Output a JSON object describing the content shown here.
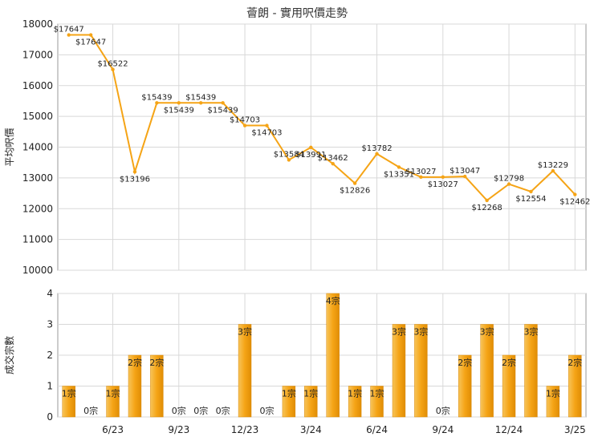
{
  "title": "薈朗 - 實用呎價走勢",
  "colors": {
    "line": "#f5a416",
    "bar": "#f5a416",
    "grid": "#d8d8d8",
    "axis": "#999999"
  },
  "chart_data": [
    {
      "type": "line",
      "title": "薈朗 - 實用呎價走勢",
      "ylabel": "平均呎價",
      "ylim": [
        10000,
        18000
      ],
      "yticks": [
        10000,
        11000,
        12000,
        13000,
        14000,
        15000,
        16000,
        17000,
        18000
      ],
      "xticks": [
        "6/23",
        "9/23",
        "12/23",
        "3/24",
        "6/24",
        "9/24",
        "12/24",
        "3/25"
      ],
      "grid": true,
      "series": [
        {
          "x": [
            "2023-04",
            "2023-05",
            "2023-06",
            "2023-07",
            "2023-08",
            "2023-09",
            "2023-10",
            "2023-11",
            "2023-12",
            "2024-01",
            "2024-02",
            "2024-03",
            "2024-04",
            "2024-05",
            "2024-06",
            "2024-07",
            "2024-08",
            "2024-09",
            "2024-10",
            "2024-11",
            "2024-12",
            "2025-01",
            "2025-02",
            "2025-03"
          ],
          "values": [
            17647,
            17647,
            16522,
            13196,
            15439,
            15439,
            15439,
            15439,
            14703,
            14703,
            13584,
            13991,
            13462,
            12826,
            13782,
            13351,
            13027,
            13027,
            13047,
            12268,
            12798,
            12554,
            13229,
            12462
          ],
          "labels": [
            "$17647",
            "$17647",
            "$16522",
            "$13196",
            "$15439",
            "$15439",
            "$15439",
            "$15439",
            "$14703",
            "$14703",
            "$13584",
            "$13991",
            "$13462",
            "$12826",
            "$13782",
            "$13351",
            "$13027",
            "$13027",
            "$13047",
            "$12268",
            "$12798",
            "$12554",
            "$13229",
            "$12462"
          ]
        }
      ]
    },
    {
      "type": "bar",
      "ylabel": "成交宗數",
      "ylim": [
        0,
        4
      ],
      "yticks": [
        0,
        1,
        2,
        3,
        4
      ],
      "xticks": [
        "6/23",
        "9/23",
        "12/23",
        "3/24",
        "6/24",
        "9/24",
        "12/24",
        "3/25"
      ],
      "grid": true,
      "categories": [
        "2023-04",
        "2023-05",
        "2023-06",
        "2023-07",
        "2023-08",
        "2023-09",
        "2023-10",
        "2023-11",
        "2023-12",
        "2024-01",
        "2024-02",
        "2024-03",
        "2024-04",
        "2024-05",
        "2024-06",
        "2024-07",
        "2024-08",
        "2024-09",
        "2024-10",
        "2024-11",
        "2024-12",
        "2025-01",
        "2025-02",
        "2025-03"
      ],
      "values": [
        1,
        0,
        1,
        2,
        2,
        0,
        0,
        0,
        3,
        0,
        1,
        1,
        4,
        1,
        1,
        3,
        3,
        0,
        2,
        3,
        2,
        3,
        1,
        2
      ],
      "labels": [
        "1宗",
        "0宗",
        "1宗",
        "2宗",
        "2宗",
        "0宗",
        "0宗",
        "0宗",
        "3宗",
        "0宗",
        "1宗",
        "1宗",
        "4宗",
        "1宗",
        "1宗",
        "3宗",
        "3宗",
        "0宗",
        "2宗",
        "3宗",
        "2宗",
        "3宗",
        "1宗",
        "2宗"
      ]
    }
  ]
}
